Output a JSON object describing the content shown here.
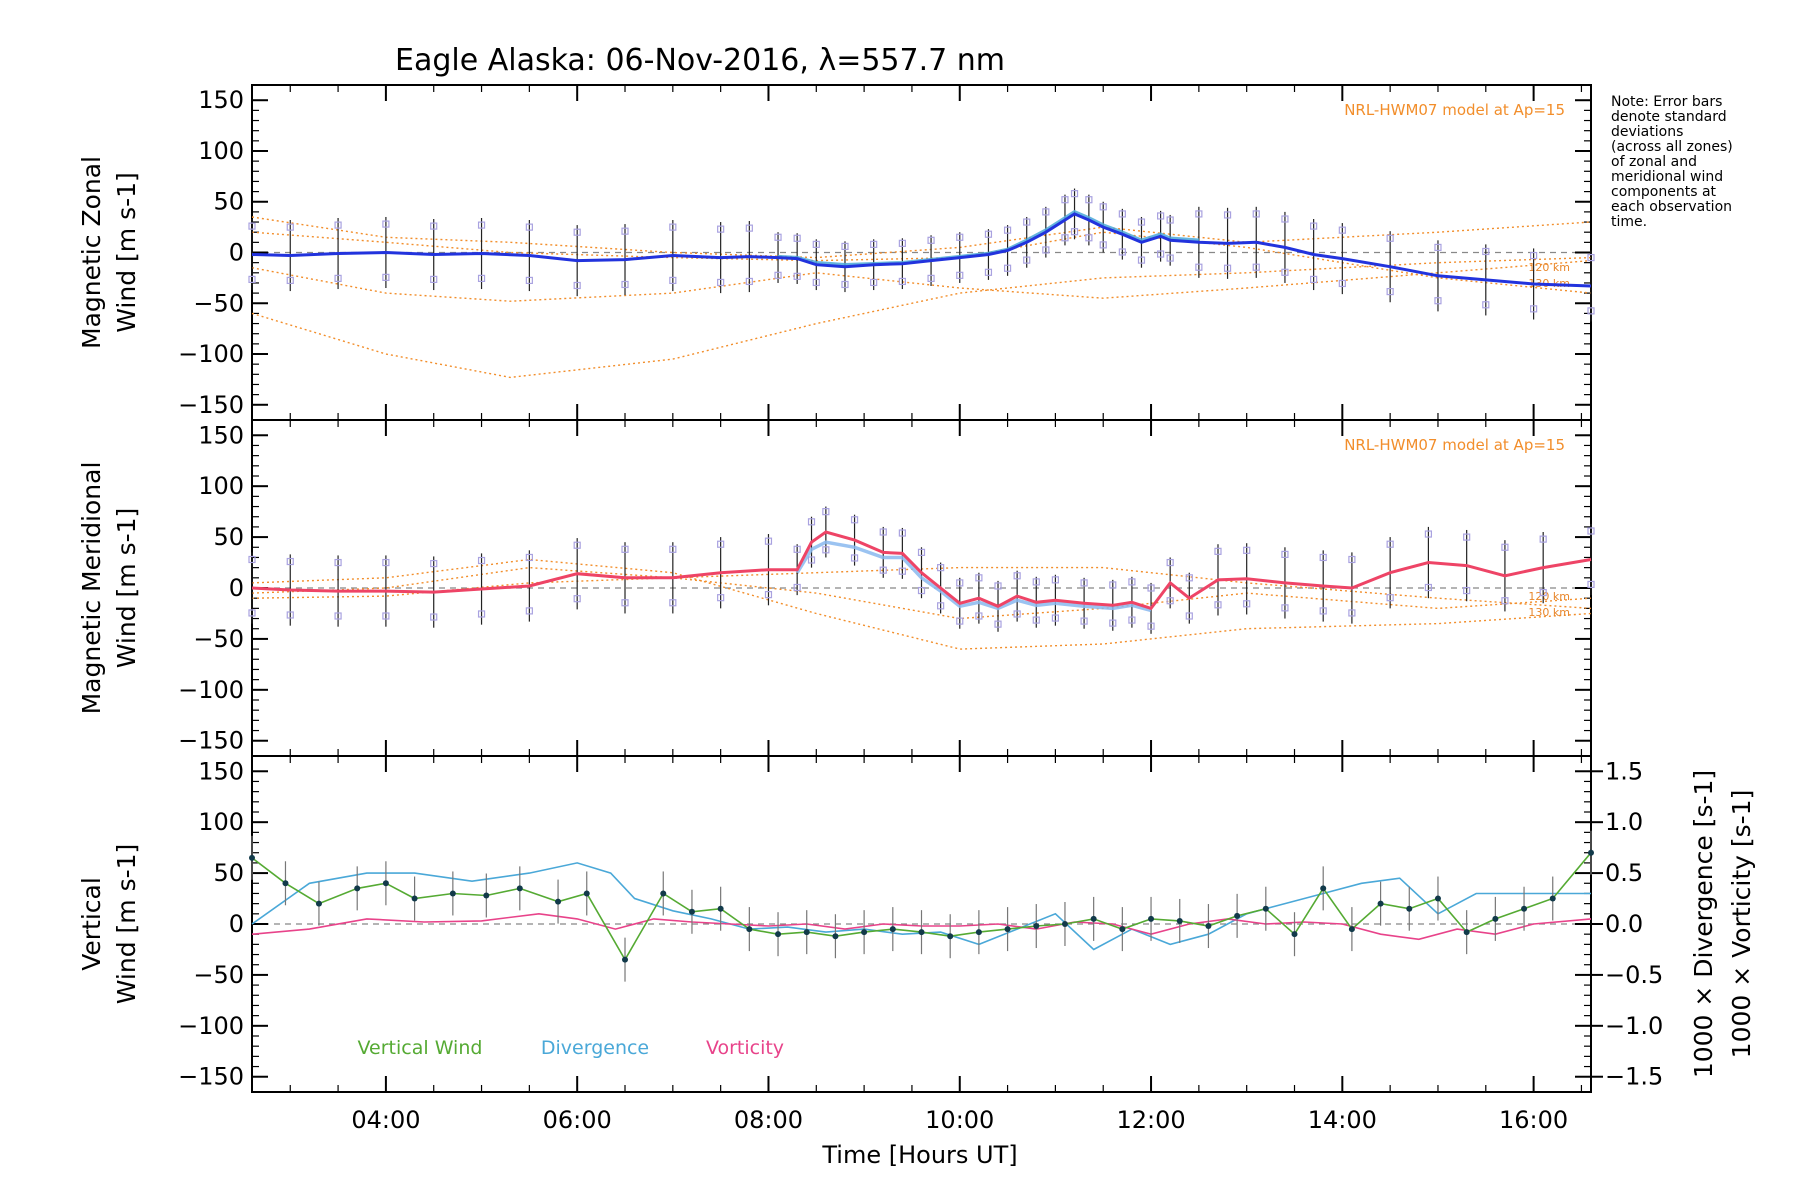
{
  "title": "Eagle Alaska: 06-Nov-2016, λ=557.7 nm",
  "note_lines": [
    "Note: Error bars",
    "denote standard",
    "deviations",
    "(across all zones)",
    "of zonal and",
    "meridional wind",
    "components at",
    "each observation",
    "time."
  ],
  "xlabel": "Time [Hours UT]",
  "chart_data": [
    {
      "type": "line",
      "panel": "zonal",
      "ylabel": [
        "Magnetic Zonal",
        "Wind [m s-1]"
      ],
      "ylim": [
        -165,
        165
      ],
      "yticks": [
        150,
        100,
        50,
        0,
        -50,
        -100,
        -150
      ],
      "xlim": [
        2.6,
        16.6
      ],
      "xticks": [
        "04:00",
        "06:00",
        "08:00",
        "10:00",
        "12:00",
        "14:00",
        "16:00"
      ],
      "xtick_values": [
        4,
        6,
        8,
        10,
        12,
        14,
        16
      ],
      "model_label": "NRL-HWM07 model at Ap=15",
      "altitude_labels": [
        "120 km",
        "130 km"
      ],
      "series": [
        {
          "name": "",
          "color": "#2233dd",
          "x": [
            2.6,
            3.0,
            3.5,
            4.0,
            4.5,
            5.0,
            5.5,
            6.0,
            6.5,
            7.0,
            7.5,
            7.8,
            8.1,
            8.3,
            8.5,
            8.8,
            9.1,
            9.4,
            9.7,
            10.0,
            10.3,
            10.5,
            10.7,
            10.9,
            11.1,
            11.2,
            11.35,
            11.5,
            11.7,
            11.9,
            12.1,
            12.2,
            12.5,
            12.8,
            13.1,
            13.4,
            13.7,
            14.0,
            14.5,
            15.0,
            15.5,
            16.0,
            16.6
          ],
          "y": [
            -2,
            -3,
            -1,
            0,
            -2,
            -1,
            -3,
            -8,
            -7,
            -3,
            -5,
            -4,
            -5,
            -6,
            -12,
            -14,
            -12,
            -11,
            -8,
            -5,
            -2,
            2,
            10,
            20,
            32,
            38,
            32,
            25,
            18,
            10,
            16,
            12,
            10,
            9,
            10,
            5,
            -2,
            -6,
            -14,
            -23,
            -27,
            -31,
            -33
          ]
        },
        {
          "name": "",
          "color": "#4aa8d8",
          "x": [
            8.1,
            8.3,
            8.5,
            8.8,
            9.1,
            9.4,
            9.7,
            10.0,
            10.3,
            10.5,
            10.7,
            10.9,
            11.1,
            11.2,
            11.35,
            11.5,
            11.7,
            11.9,
            12.1,
            12.2,
            12.5
          ],
          "y": [
            -4,
            -5,
            -10,
            -12,
            -11,
            -10,
            -7,
            -4,
            -1,
            3,
            12,
            22,
            34,
            40,
            34,
            27,
            20,
            12,
            18,
            14,
            12
          ]
        }
      ],
      "model_curves": [
        {
          "x": [
            2.6,
            4,
            5.3,
            7,
            8.5,
            10,
            11.5,
            13,
            15,
            16.6
          ],
          "y": [
            -60,
            -100,
            -123,
            -105,
            -70,
            -40,
            -25,
            -20,
            -10,
            -5
          ]
        },
        {
          "x": [
            2.6,
            4,
            5.3,
            7,
            8.5,
            10,
            11.5,
            13,
            15,
            16.6
          ],
          "y": [
            -15,
            -40,
            -48,
            -40,
            -20,
            -35,
            -45,
            -35,
            -20,
            -8
          ]
        },
        {
          "x": [
            2.6,
            4,
            5.3,
            7,
            8.5,
            10,
            11.5,
            13,
            15,
            16.6
          ],
          "y": [
            20,
            10,
            0,
            -5,
            -8,
            -5,
            20,
            5,
            -25,
            -40
          ]
        },
        {
          "x": [
            2.6,
            4,
            5.3,
            7,
            8.5,
            10,
            11.5,
            13,
            15,
            16.6
          ],
          "y": [
            35,
            15,
            10,
            0,
            -5,
            5,
            25,
            10,
            20,
            30
          ]
        }
      ]
    },
    {
      "type": "line",
      "panel": "meridional",
      "ylabel": [
        "Magnetic Meridional",
        "Wind [m s-1]"
      ],
      "ylim": [
        -165,
        165
      ],
      "yticks": [
        150,
        100,
        50,
        0,
        -50,
        -100,
        -150
      ],
      "xlim": [
        2.6,
        16.6
      ],
      "model_label": "NRL-HWM07 model at Ap=15",
      "altitude_labels": [
        "120 km",
        "130 km"
      ],
      "series": [
        {
          "name": "",
          "color": "#ee4466",
          "x": [
            2.6,
            3.0,
            3.5,
            4.0,
            4.5,
            5.0,
            5.5,
            6.0,
            6.5,
            7.0,
            7.5,
            8.0,
            8.3,
            8.45,
            8.6,
            8.9,
            9.2,
            9.4,
            9.6,
            9.8,
            10.0,
            10.2,
            10.4,
            10.6,
            10.8,
            11.0,
            11.3,
            11.6,
            11.8,
            12.0,
            12.2,
            12.4,
            12.7,
            13.0,
            13.4,
            13.8,
            14.1,
            14.5,
            14.9,
            15.3,
            15.7,
            16.1,
            16.6
          ],
          "y": [
            0,
            -2,
            -3,
            -3,
            -4,
            -1,
            2,
            14,
            10,
            10,
            15,
            18,
            18,
            45,
            55,
            47,
            35,
            34,
            15,
            0,
            -15,
            -10,
            -18,
            -8,
            -14,
            -12,
            -15,
            -17,
            -14,
            -20,
            5,
            -10,
            8,
            9,
            5,
            2,
            0,
            15,
            25,
            22,
            12,
            20,
            28
          ]
        },
        {
          "name": "",
          "color": "#8ab8ee",
          "x": [
            8.3,
            8.45,
            8.6,
            8.9,
            9.2,
            9.4,
            9.6,
            9.8,
            10.0,
            10.2,
            10.4,
            10.6,
            10.8,
            11.0,
            11.3,
            11.6,
            11.8,
            12.0
          ],
          "y": [
            15,
            38,
            45,
            40,
            30,
            30,
            10,
            -3,
            -18,
            -14,
            -20,
            -12,
            -17,
            -15,
            -18,
            -20,
            -17,
            -22
          ]
        }
      ],
      "model_curves": [
        {
          "x": [
            2.6,
            4,
            5.5,
            7,
            8.5,
            10,
            11.5,
            13,
            15,
            16.6
          ],
          "y": [
            5,
            10,
            28,
            15,
            -25,
            -60,
            -55,
            -40,
            -35,
            -25
          ]
        },
        {
          "x": [
            2.6,
            4,
            5.5,
            7,
            8.5,
            10,
            11.5,
            13,
            15,
            16.6
          ],
          "y": [
            -5,
            0,
            20,
            10,
            -5,
            -30,
            -20,
            -5,
            -20,
            -10
          ]
        },
        {
          "x": [
            2.6,
            4,
            5.5,
            7,
            8.5,
            10,
            11.5,
            13,
            15,
            16.6
          ],
          "y": [
            -10,
            -8,
            5,
            10,
            15,
            20,
            20,
            5,
            -10,
            -20
          ]
        }
      ]
    },
    {
      "type": "line",
      "panel": "vertical",
      "ylabel": [
        "Vertical",
        "Wind [m s-1]"
      ],
      "ylim": [
        -165,
        165
      ],
      "yticks": [
        150,
        100,
        50,
        0,
        -50,
        -100,
        -150
      ],
      "xlim": [
        2.6,
        16.6
      ],
      "right_ylim": [
        -1.65,
        1.65
      ],
      "right_yticks": [
        "1.5",
        "1.0",
        "0.5",
        "0.0",
        "−0.5",
        "−1.0",
        "−1.5"
      ],
      "right_ytick_values": [
        1.5,
        1.0,
        0.5,
        0.0,
        -0.5,
        -1.0,
        -1.5
      ],
      "right_ylabels": [
        "1000 × Divergence [s-1]",
        "1000 × Vorticity [s-1]"
      ],
      "series": [
        {
          "name": "Vertical Wind",
          "color": "#55aa33",
          "x": [
            2.6,
            2.95,
            3.3,
            3.7,
            4.0,
            4.3,
            4.7,
            5.05,
            5.4,
            5.8,
            6.1,
            6.5,
            6.9,
            7.2,
            7.5,
            7.8,
            8.1,
            8.4,
            8.7,
            9.0,
            9.3,
            9.6,
            9.9,
            10.2,
            10.5,
            10.8,
            11.1,
            11.4,
            11.7,
            12.0,
            12.3,
            12.6,
            12.9,
            13.2,
            13.5,
            13.8,
            14.1,
            14.4,
            14.7,
            15.0,
            15.3,
            15.6,
            15.9,
            16.2,
            16.6
          ],
          "y": [
            65,
            40,
            20,
            35,
            40,
            25,
            30,
            28,
            35,
            22,
            30,
            -35,
            30,
            12,
            15,
            -5,
            -10,
            -8,
            -12,
            -8,
            -5,
            -8,
            -12,
            -8,
            -5,
            -2,
            0,
            5,
            -5,
            5,
            3,
            -2,
            8,
            15,
            -10,
            35,
            -5,
            20,
            15,
            25,
            -8,
            5,
            15,
            25,
            70
          ]
        },
        {
          "name": "Divergence",
          "color": "#4aa8d8",
          "x": [
            2.6,
            3.2,
            3.8,
            4.3,
            4.9,
            5.5,
            6.0,
            6.35,
            6.6,
            7.0,
            7.4,
            7.8,
            8.2,
            8.6,
            9.0,
            9.4,
            9.8,
            10.2,
            10.6,
            11.0,
            11.4,
            11.8,
            12.2,
            12.6,
            13.0,
            13.4,
            13.8,
            14.2,
            14.6,
            15.0,
            15.4,
            15.8,
            16.2,
            16.6
          ],
          "y": [
            0.0,
            0.4,
            0.5,
            0.5,
            0.42,
            0.5,
            0.6,
            0.5,
            0.25,
            0.13,
            0.05,
            -0.05,
            -0.03,
            -0.08,
            -0.05,
            -0.1,
            -0.08,
            -0.2,
            -0.05,
            0.1,
            -0.25,
            -0.05,
            -0.2,
            -0.1,
            0.1,
            0.2,
            0.3,
            0.4,
            0.45,
            0.1,
            0.3,
            0.3,
            0.3,
            0.3
          ]
        },
        {
          "name": "Vorticity",
          "color": "#e8438a",
          "x": [
            2.6,
            3.2,
            3.8,
            4.4,
            5.0,
            5.6,
            6.0,
            6.4,
            6.8,
            7.2,
            7.6,
            8.0,
            8.4,
            8.8,
            9.2,
            9.6,
            10.0,
            10.4,
            10.8,
            11.2,
            11.6,
            12.0,
            12.4,
            12.8,
            13.2,
            13.6,
            14.0,
            14.4,
            14.8,
            15.2,
            15.6,
            16.0,
            16.6
          ],
          "y": [
            -0.1,
            -0.05,
            0.05,
            0.02,
            0.03,
            0.1,
            0.05,
            -0.05,
            0.05,
            0.02,
            0.0,
            -0.02,
            0.0,
            -0.05,
            0.0,
            -0.02,
            -0.02,
            0.0,
            -0.05,
            0.02,
            0.0,
            -0.1,
            0.0,
            0.05,
            0.0,
            0.02,
            0.0,
            -0.1,
            -0.15,
            -0.05,
            -0.1,
            0.0,
            0.05
          ]
        }
      ]
    }
  ]
}
